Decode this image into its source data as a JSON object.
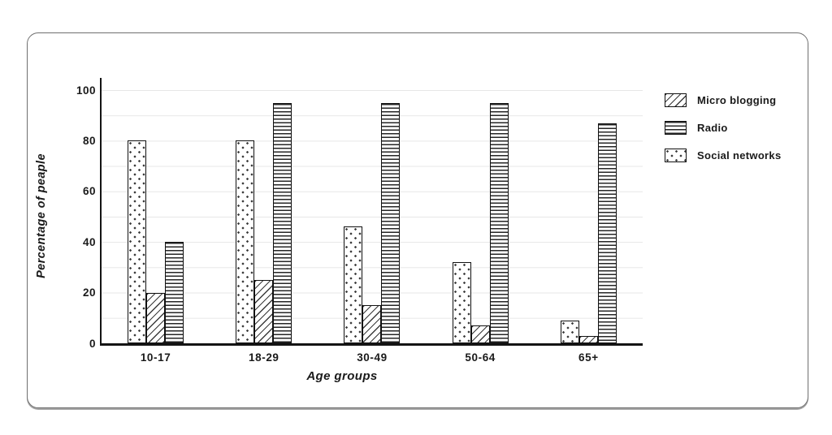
{
  "chart_data": {
    "type": "bar",
    "title": "",
    "categories": [
      "10-17",
      "18-29",
      "30-49",
      "50-64",
      "65+"
    ],
    "series": [
      {
        "name": "Micro blogging",
        "pattern": "diagonal",
        "values": [
          20,
          25,
          15,
          7,
          3
        ]
      },
      {
        "name": "Radio",
        "pattern": "horizontal",
        "values": [
          40,
          95,
          95,
          95,
          87
        ]
      },
      {
        "name": "Social networks",
        "pattern": "dots",
        "values": [
          80,
          80,
          46,
          32,
          9
        ]
      }
    ],
    "bar_order": [
      "Social networks",
      "Micro blogging",
      "Radio"
    ],
    "xlabel": "Age groups",
    "ylabel": "Percentage of peaple",
    "yticks": [
      0,
      20,
      40,
      60,
      80,
      100
    ],
    "ylim": [
      0,
      100
    ],
    "grid": true,
    "grid_interval": 10,
    "legend_position": "right"
  }
}
